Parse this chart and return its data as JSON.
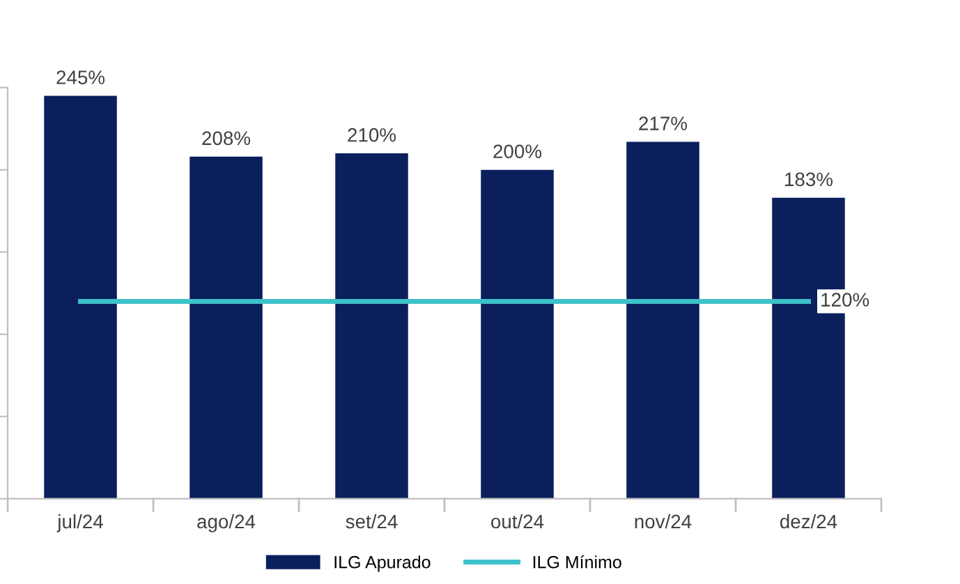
{
  "chart_data": {
    "type": "bar",
    "categories": [
      "jul/24",
      "ago/24",
      "set/24",
      "out/24",
      "nov/24",
      "dez/24"
    ],
    "series": [
      {
        "name": "ILG Apurado",
        "color": "#0a1f5c",
        "values": [
          245,
          208,
          210,
          200,
          217,
          183
        ],
        "value_labels": [
          "245%",
          "208%",
          "210%",
          "200%",
          "217%",
          "183%"
        ]
      },
      {
        "name": "ILG Mínimo",
        "type": "line",
        "color": "#3ec1c9",
        "values": [
          120,
          120,
          120,
          120,
          120,
          120
        ],
        "value_labels": [
          null,
          null,
          null,
          null,
          null,
          "120%"
        ]
      }
    ],
    "ylim": [
      0,
      250
    ],
    "yticks": [
      {
        "value": 0,
        "label": null
      },
      {
        "value": 50,
        "label": null
      },
      {
        "value": 100,
        "label": null
      },
      {
        "value": 150,
        "label": null
      },
      {
        "value": 200,
        "label": null
      },
      {
        "value": 250,
        "label": null
      }
    ],
    "tick_labels": "x",
    "grid": false,
    "legend": "bottom",
    "line_style": "solid",
    "marker": "none"
  }
}
